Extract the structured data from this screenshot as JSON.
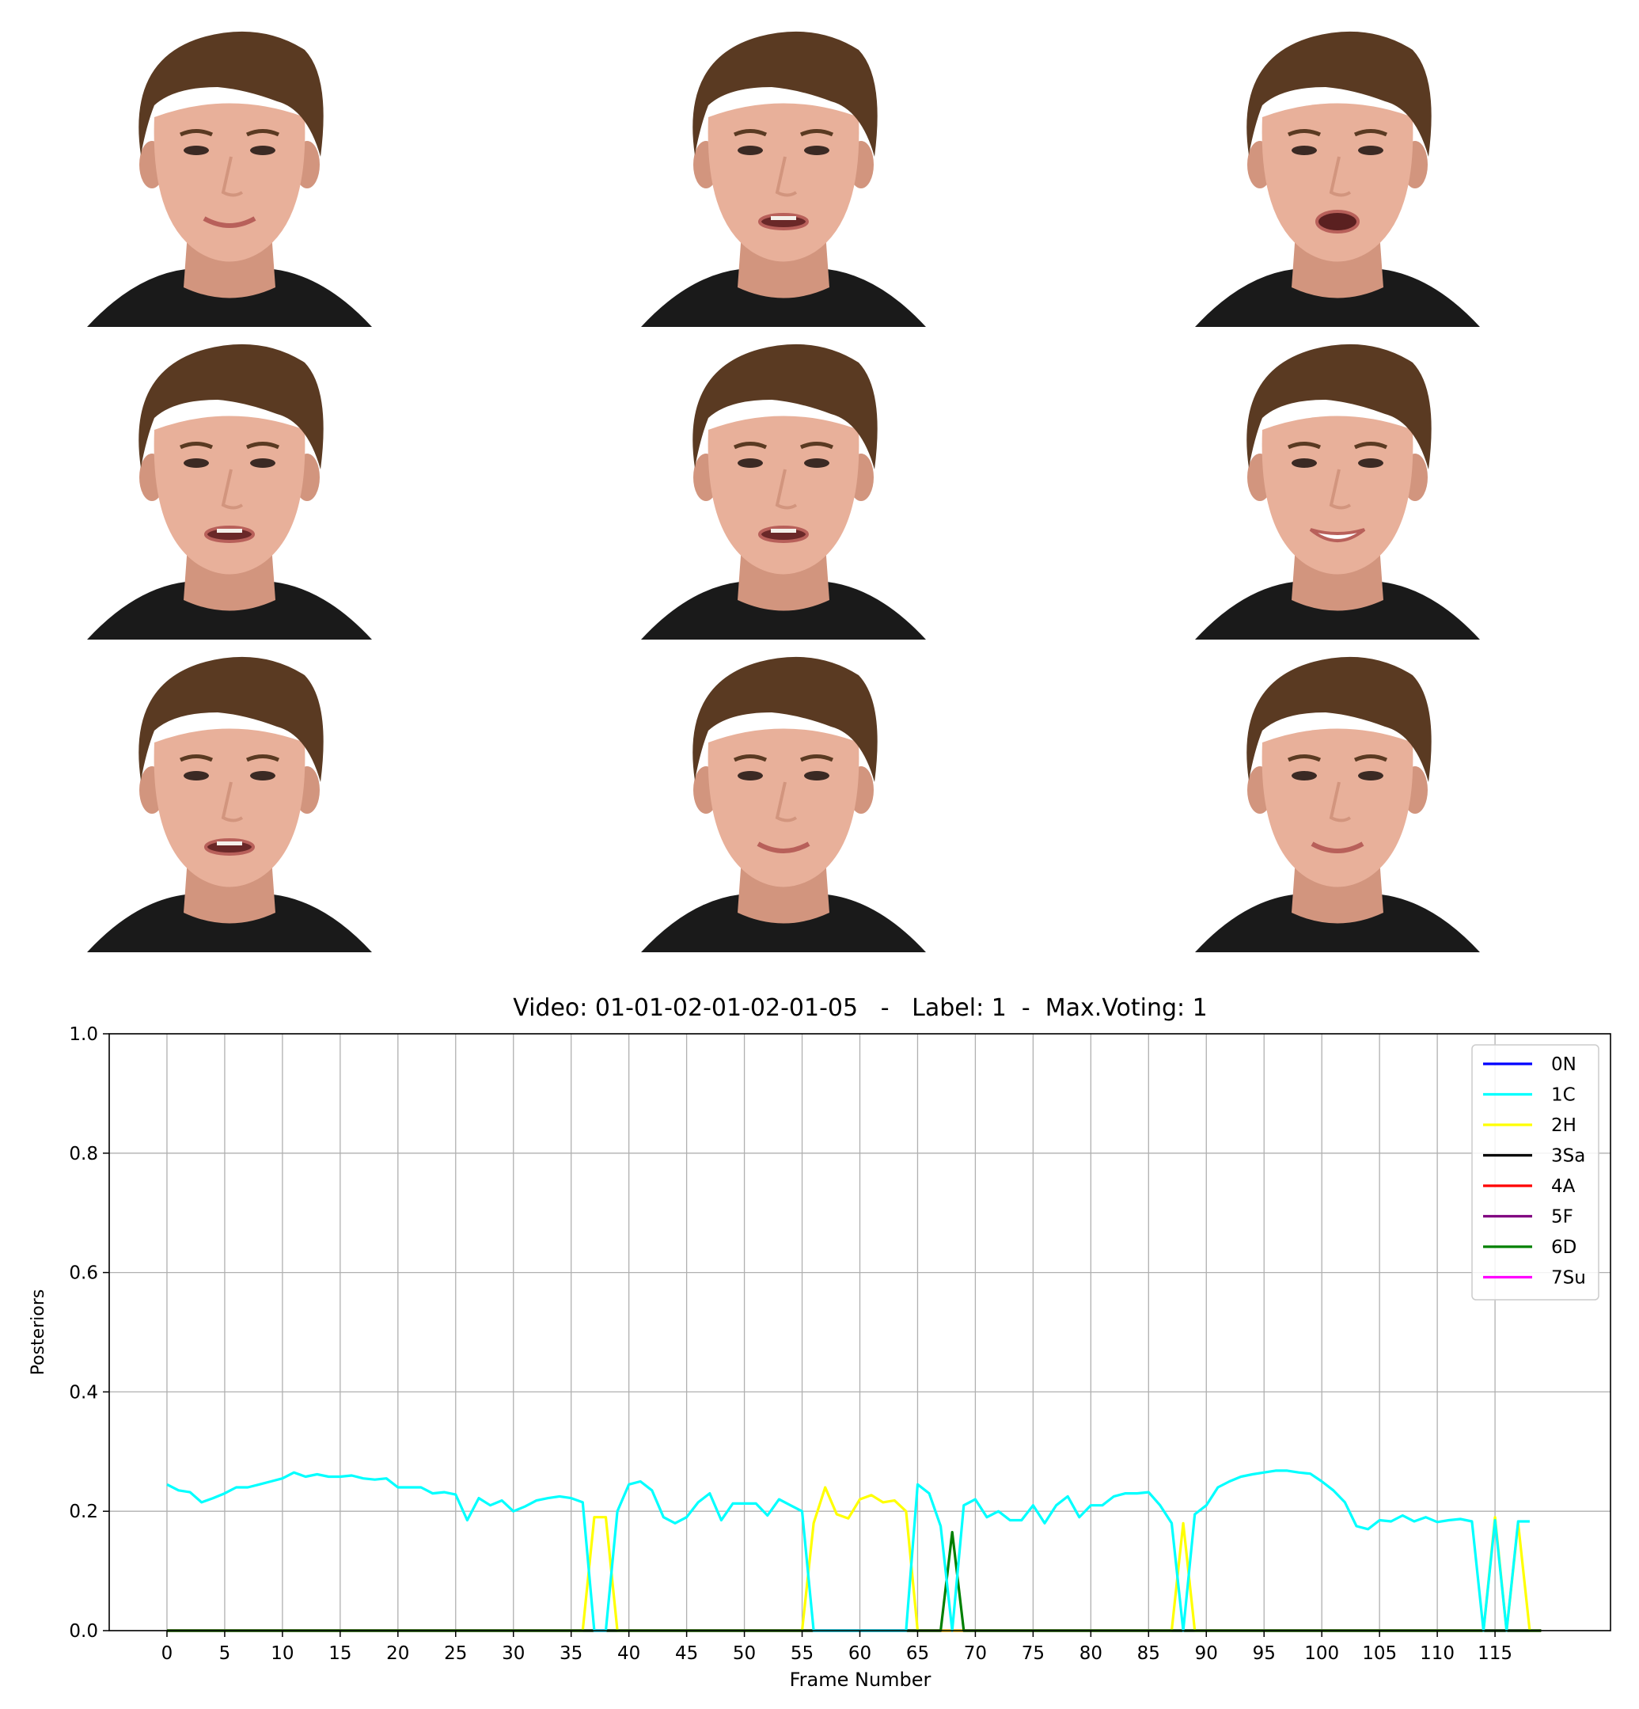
{
  "frames": [
    {
      "mouth": "smile"
    },
    {
      "mouth": "talk"
    },
    {
      "mouth": "open"
    },
    {
      "mouth": "talk"
    },
    {
      "mouth": "talk"
    },
    {
      "mouth": "grin"
    },
    {
      "mouth": "talk"
    },
    {
      "mouth": "smile"
    },
    {
      "mouth": "smile"
    }
  ],
  "colors": {
    "hair": "#5a3a22",
    "skin": "#e8b09a",
    "skin_shadow": "#d2957e",
    "shirt": "#1a1a1a",
    "lips": "#b8605a"
  },
  "chart_data": {
    "type": "line",
    "title": "Video: 01-01-02-01-02-01-05   -   Label: 1  -  Max.Voting: 1",
    "xlabel": "Frame Number",
    "ylabel": "Posteriors",
    "xlim": [
      -5,
      125
    ],
    "ylim": [
      0,
      1.0
    ],
    "xticks": [
      0,
      5,
      10,
      15,
      20,
      25,
      30,
      35,
      40,
      45,
      50,
      55,
      60,
      65,
      70,
      75,
      80,
      85,
      90,
      95,
      100,
      105,
      110,
      115
    ],
    "yticks": [
      0.0,
      0.2,
      0.4,
      0.6,
      0.8,
      1.0
    ],
    "grid": true,
    "legend_position": "top-right",
    "series": [
      {
        "name": "0N",
        "color": "#0000ff",
        "values": "zeros"
      },
      {
        "name": "1C",
        "color": "#00ffff",
        "values": [
          0.245,
          0.235,
          0.232,
          0.215,
          0.222,
          0.23,
          0.24,
          0.24,
          0.245,
          0.25,
          0.255,
          0.265,
          0.258,
          0.262,
          0.258,
          0.258,
          0.26,
          0.255,
          0.253,
          0.255,
          0.24,
          0.24,
          0.24,
          0.23,
          0.232,
          0.228,
          0.185,
          0.222,
          0.21,
          0.218,
          0.2,
          0.208,
          0.218,
          0.222,
          0.225,
          0.222,
          0.215,
          0.0,
          0.0,
          0.2,
          0.245,
          0.25,
          0.235,
          0.19,
          0.18,
          0.19,
          0.215,
          0.23,
          0.185,
          0.213,
          0.213,
          0.213,
          0.193,
          0.22,
          0.21,
          0.2,
          0.0,
          0.0,
          0.0,
          0.0,
          0.0,
          0.0,
          0.0,
          0.0,
          0.0,
          0.245,
          0.23,
          0.175,
          0.0,
          0.21,
          0.22,
          0.19,
          0.2,
          0.185,
          0.185,
          0.21,
          0.18,
          0.21,
          0.225,
          0.19,
          0.21,
          0.21,
          0.225,
          0.23,
          0.23,
          0.232,
          0.21,
          0.18,
          0.0,
          0.195,
          0.21,
          0.24,
          0.25,
          0.258,
          0.262,
          0.265,
          0.268,
          0.268,
          0.265,
          0.263,
          0.25,
          0.235,
          0.215,
          0.175,
          0.17,
          0.185,
          0.183,
          0.193,
          0.183,
          0.19,
          0.182,
          0.185,
          0.187,
          0.183,
          0.0,
          0.185,
          0.0,
          0.183,
          0.183
        ]
      },
      {
        "name": "2H",
        "color": "#ffff00",
        "values": [
          0,
          0,
          0,
          0,
          0,
          0,
          0,
          0,
          0,
          0,
          0,
          0,
          0,
          0,
          0,
          0,
          0,
          0,
          0,
          0,
          0,
          0,
          0,
          0,
          0,
          0,
          0,
          0,
          0,
          0,
          0,
          0,
          0,
          0,
          0,
          0,
          0,
          0.19,
          0.19,
          0,
          0,
          0,
          0,
          0,
          0,
          0,
          0,
          0,
          0,
          0,
          0,
          0,
          0,
          0,
          0,
          0,
          0.18,
          0.24,
          0.195,
          0.188,
          0.22,
          0.227,
          0.215,
          0.218,
          0.2,
          0,
          0,
          0,
          0,
          0,
          0,
          0,
          0,
          0,
          0,
          0,
          0,
          0,
          0,
          0,
          0,
          0,
          0,
          0,
          0,
          0,
          0,
          0,
          0.18,
          0,
          0,
          0,
          0,
          0,
          0,
          0,
          0,
          0,
          0,
          0,
          0,
          0,
          0,
          0,
          0,
          0,
          0,
          0,
          0,
          0,
          0,
          0,
          0,
          0,
          0,
          0.19,
          0,
          0.18,
          0,
          0
        ]
      },
      {
        "name": "3Sa",
        "color": "#000000",
        "values": "zeros"
      },
      {
        "name": "4A",
        "color": "#ff0000",
        "values": "zeros"
      },
      {
        "name": "5F",
        "color": "#800080",
        "values": "zeros"
      },
      {
        "name": "6D",
        "color": "#008000",
        "values": {
          "67": 0.0,
          "68": 0.165,
          "69": 0.0
        }
      },
      {
        "name": "7Su",
        "color": "#ff00ff",
        "values": "zeros"
      }
    ]
  }
}
